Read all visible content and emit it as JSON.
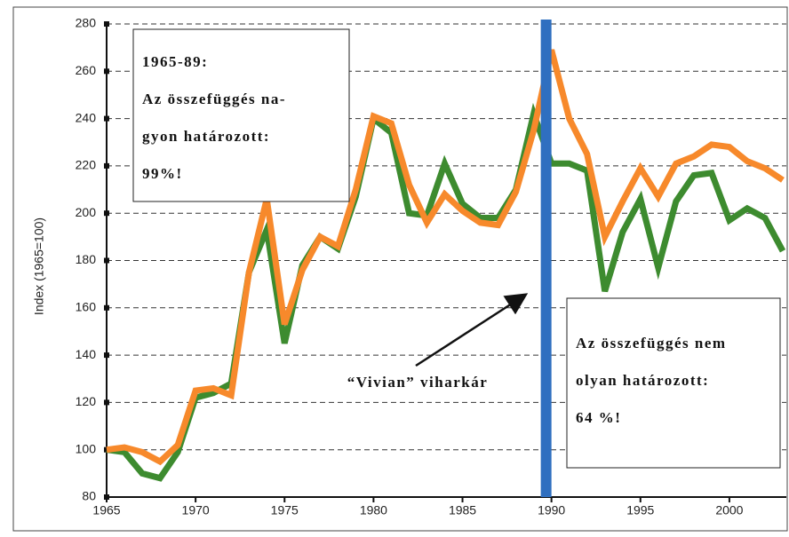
{
  "chart_data": {
    "type": "line",
    "y_label": "Index (1965=100)",
    "x": [
      1965,
      1966,
      1967,
      1968,
      1969,
      1970,
      1971,
      1972,
      1973,
      1974,
      1975,
      1976,
      1977,
      1978,
      1979,
      1980,
      1981,
      1982,
      1983,
      1984,
      1985,
      1986,
      1987,
      1988,
      1989,
      1990,
      1991,
      1992,
      1993,
      1994,
      1995,
      1996,
      1997,
      1998,
      1999,
      2000,
      2001,
      2002,
      2003
    ],
    "series": [
      {
        "color": "#3d8b2f",
        "values": [
          100,
          99,
          90,
          88,
          99,
          122,
          124,
          128,
          175,
          193,
          145,
          178,
          190,
          185,
          207,
          240,
          234,
          200,
          199,
          221,
          204,
          198,
          198,
          210,
          242,
          221,
          221,
          218,
          167,
          192,
          206,
          177,
          205,
          216,
          217,
          197,
          202,
          198,
          184
        ]
      },
      {
        "color": "#f7892b",
        "values": [
          100,
          101,
          99,
          95,
          102,
          125,
          126,
          123,
          175,
          206,
          153,
          176,
          190,
          186,
          210,
          241,
          238,
          212,
          196,
          208,
          201,
          196,
          195,
          209,
          235,
          269,
          240,
          225,
          190,
          205,
          219,
          207,
          221,
          224,
          229,
          228,
          222,
          219,
          214
        ]
      }
    ],
    "xlim": [
      1965,
      2003.2
    ],
    "ylim": [
      80,
      280
    ],
    "xticks": [
      1965,
      1970,
      1975,
      1980,
      1985,
      1990,
      1995,
      2000
    ],
    "yticks": [
      80,
      100,
      120,
      140,
      160,
      180,
      200,
      220,
      240,
      260,
      280
    ],
    "grid": true,
    "vline": {
      "x": 1989.7,
      "color": "#2f6fc0"
    },
    "boxes": [
      {
        "lines": [
          "1965-89:",
          "Az összefüggés na-",
          "gyon határozott:",
          "99%!"
        ]
      },
      {
        "lines": [
          "Az összefüggés nem",
          "olyan határozott:",
          "64 %!"
        ]
      }
    ],
    "annotation": "“Vivian” viharkár"
  }
}
